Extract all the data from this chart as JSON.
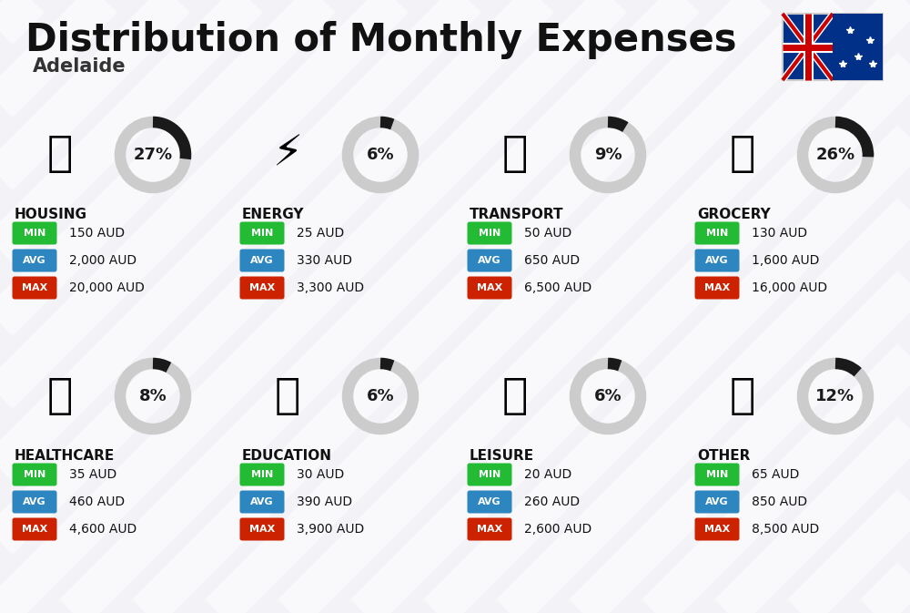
{
  "title": "Distribution of Monthly Expenses",
  "subtitle": "Adelaide",
  "bg_color": "#f2f2f7",
  "categories": [
    {
      "name": "HOUSING",
      "pct": 27,
      "min": "150 AUD",
      "avg": "2,000 AUD",
      "max": "20,000 AUD",
      "row": 0,
      "col": 0
    },
    {
      "name": "ENERGY",
      "pct": 6,
      "min": "25 AUD",
      "avg": "330 AUD",
      "max": "3,300 AUD",
      "row": 0,
      "col": 1
    },
    {
      "name": "TRANSPORT",
      "pct": 9,
      "min": "50 AUD",
      "avg": "650 AUD",
      "max": "6,500 AUD",
      "row": 0,
      "col": 2
    },
    {
      "name": "GROCERY",
      "pct": 26,
      "min": "130 AUD",
      "avg": "1,600 AUD",
      "max": "16,000 AUD",
      "row": 0,
      "col": 3
    },
    {
      "name": "HEALTHCARE",
      "pct": 8,
      "min": "35 AUD",
      "avg": "460 AUD",
      "max": "4,600 AUD",
      "row": 1,
      "col": 0
    },
    {
      "name": "EDUCATION",
      "pct": 6,
      "min": "30 AUD",
      "avg": "390 AUD",
      "max": "3,900 AUD",
      "row": 1,
      "col": 1
    },
    {
      "name": "LEISURE",
      "pct": 6,
      "min": "20 AUD",
      "avg": "260 AUD",
      "max": "2,600 AUD",
      "row": 1,
      "col": 2
    },
    {
      "name": "OTHER",
      "pct": 12,
      "min": "65 AUD",
      "avg": "850 AUD",
      "max": "8,500 AUD",
      "row": 1,
      "col": 3
    }
  ],
  "color_min": "#22bb33",
  "color_avg": "#2e86c1",
  "color_max": "#cc2200",
  "title_color": "#111111",
  "subtitle_color": "#333333",
  "category_color": "#111111",
  "value_color": "#111111",
  "donut_dark": "#1a1a1a",
  "donut_gray": "#cccccc",
  "stripe_color": "#ffffff",
  "flag_blue": "#003087",
  "flag_red": "#CC0000"
}
